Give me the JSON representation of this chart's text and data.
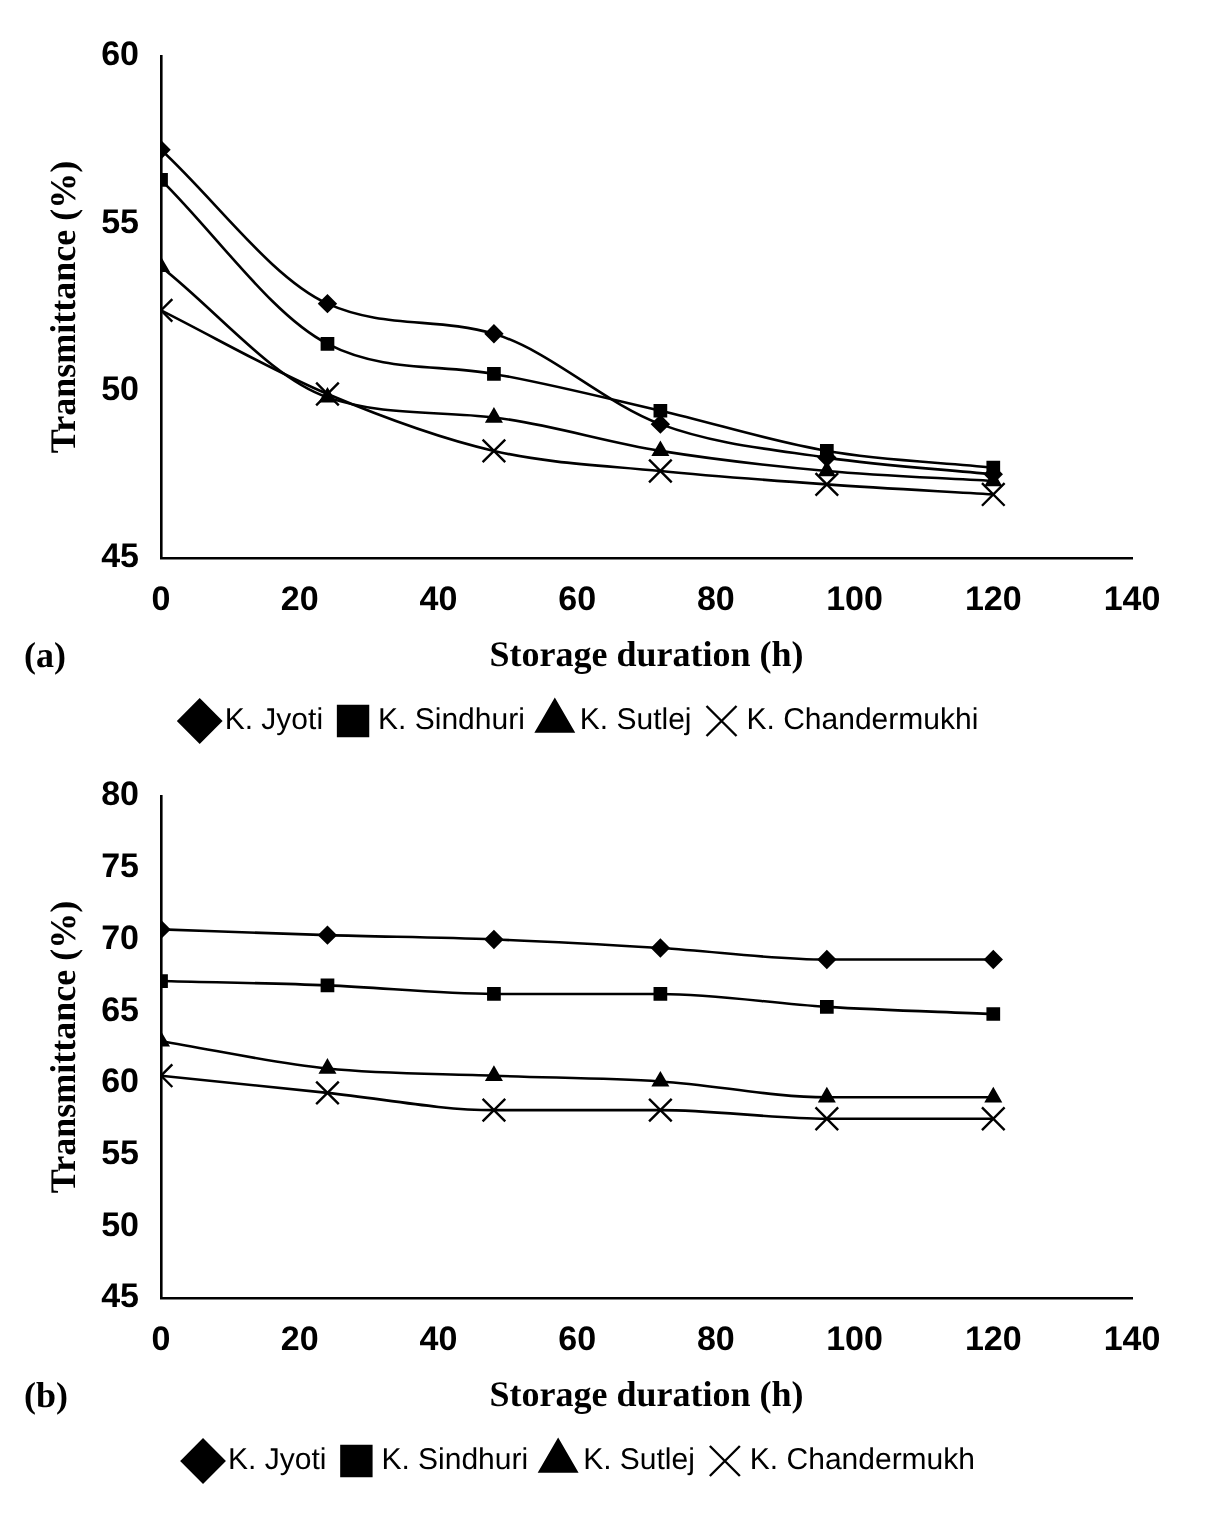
{
  "chart_data": [
    {
      "type": "line",
      "xlabel": "Storage duration (h)",
      "ylabel": "Transmittance (%)",
      "annotations": [
        "(a)"
      ],
      "x": [
        0,
        24,
        48,
        72,
        96,
        120
      ],
      "xlim": [
        0,
        140
      ],
      "xticks": [
        0,
        20,
        40,
        60,
        80,
        100,
        120,
        140
      ],
      "ylim": [
        45,
        60
      ],
      "yticks": [
        45,
        50,
        55,
        60
      ],
      "grid": false,
      "legend": "bottom",
      "series": [
        {
          "name": "K. Jyoti",
          "color": "#000000",
          "marker": "diamond",
          "values": [
            57.2,
            52.6,
            51.7,
            49.0,
            48.0,
            47.5
          ]
        },
        {
          "name": "K. Sindhuri",
          "color": "#000000",
          "marker": "square",
          "values": [
            56.3,
            51.4,
            50.5,
            49.4,
            48.2,
            47.7
          ]
        },
        {
          "name": "K. Sutlej",
          "color": "#000000",
          "marker": "triangle",
          "values": [
            53.7,
            49.8,
            49.2,
            48.2,
            47.6,
            47.3
          ]
        },
        {
          "name": "K. Chandermukhi",
          "color": "#000000",
          "marker": "cross",
          "values": [
            52.4,
            49.9,
            48.2,
            47.6,
            47.2,
            46.9
          ]
        }
      ]
    },
    {
      "type": "line",
      "xlabel": "Storage duration (h)",
      "ylabel": "Transmittance (%)",
      "annotations": [
        "(b)"
      ],
      "x": [
        0,
        24,
        48,
        72,
        96,
        120
      ],
      "xlim": [
        0,
        140
      ],
      "xticks": [
        0,
        20,
        40,
        60,
        80,
        100,
        120,
        140
      ],
      "ylim": [
        45,
        80
      ],
      "yticks": [
        45,
        50,
        55,
        60,
        65,
        70,
        75,
        80
      ],
      "grid": false,
      "legend": "bottom",
      "series": [
        {
          "name": "K. Jyoti",
          "color": "#000000",
          "marker": "diamond",
          "values": [
            70.7,
            70.3,
            70.0,
            69.4,
            68.6,
            68.6
          ]
        },
        {
          "name": "K. Sindhuri",
          "color": "#000000",
          "marker": "square",
          "values": [
            67.1,
            66.8,
            66.2,
            66.2,
            65.3,
            64.8
          ]
        },
        {
          "name": "K. Sutlej",
          "color": "#000000",
          "marker": "triangle",
          "values": [
            62.9,
            61.0,
            60.5,
            60.1,
            59.0,
            59.0
          ]
        },
        {
          "name": "K. Chandermukh",
          "color": "#000000",
          "marker": "cross",
          "values": [
            60.5,
            59.3,
            58.1,
            58.1,
            57.5,
            57.5
          ]
        }
      ]
    }
  ]
}
